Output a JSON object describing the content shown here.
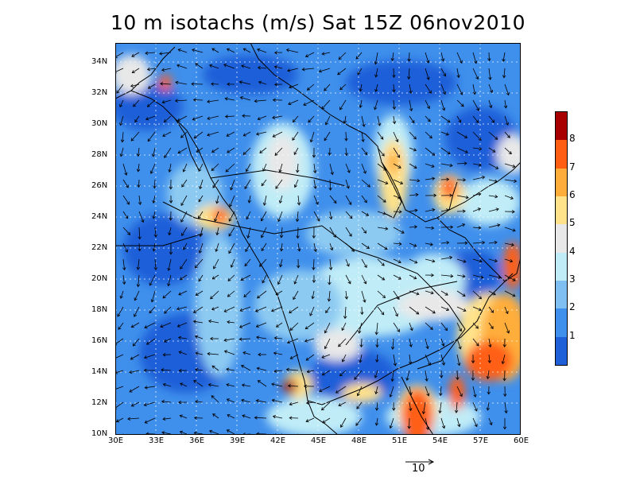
{
  "title": "10 m isotachs (m/s) Sat 15Z 06nov2010",
  "longitude_ticks": [
    "30E",
    "33E",
    "36E",
    "39E",
    "42E",
    "45E",
    "48E",
    "51E",
    "54E",
    "57E",
    "60E"
  ],
  "latitude_ticks": [
    "10N",
    "12N",
    "14N",
    "16N",
    "18N",
    "20N",
    "22N",
    "24N",
    "26N",
    "28N",
    "30N",
    "32N",
    "34N"
  ],
  "colorbar": {
    "labels": [
      "1",
      "2",
      "3",
      "4",
      "5",
      "6",
      "7",
      "8"
    ],
    "colors": [
      "#1f5fd8",
      "#3f8fec",
      "#7fbff2",
      "#bfecf7",
      "#e8e8e8",
      "#ffe28a",
      "#ffad3a",
      "#ff5e13",
      "#a80000"
    ]
  },
  "reference_vector": {
    "label": "10"
  },
  "colors": {
    "ocean_low": "#2a6fe0",
    "land_mid": "#8dcaf2",
    "coast": "#000000",
    "arrow": "#000000"
  }
}
